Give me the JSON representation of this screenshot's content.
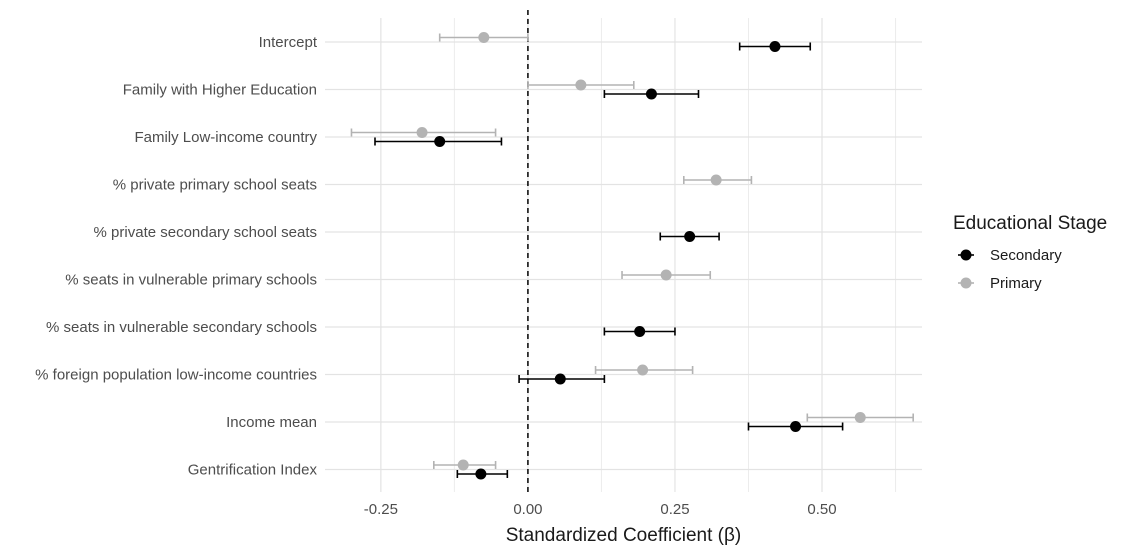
{
  "chart_data": {
    "type": "scatter",
    "subtype": "coefficient-plot-with-error-bars",
    "xlabel": "Standardized Coefficient (β)",
    "xlim": [
      -0.345,
      0.67
    ],
    "xticks": [
      -0.25,
      0.0,
      0.25,
      0.5
    ],
    "xtick_labels": [
      "-0.25",
      "0.00",
      "0.25",
      "0.50"
    ],
    "reference_line": {
      "x": 0,
      "style": "dashed",
      "color": "#000000"
    },
    "grid": true,
    "legend": {
      "title": "Educational Stage",
      "placement": "right"
    },
    "categories": [
      "Intercept",
      "Family with Higher Education",
      "Family Low-income country",
      "% private primary school seats",
      "% private secondary school seats",
      "% seats in vulnerable primary schools",
      "% seats in vulnerable secondary schools",
      "% foreign population low-income countries",
      "Income mean",
      "Gentrification Index"
    ],
    "series": [
      {
        "name": "Secondary",
        "color": "#000000",
        "points": [
          {
            "category": "Intercept",
            "estimate": 0.42,
            "lower": 0.36,
            "upper": 0.48
          },
          {
            "category": "Family with Higher Education",
            "estimate": 0.21,
            "lower": 0.13,
            "upper": 0.29
          },
          {
            "category": "Family Low-income country",
            "estimate": -0.15,
            "lower": -0.26,
            "upper": -0.045
          },
          {
            "category": "% private secondary school seats",
            "estimate": 0.275,
            "lower": 0.225,
            "upper": 0.325
          },
          {
            "category": "% seats in vulnerable secondary schools",
            "estimate": 0.19,
            "lower": 0.13,
            "upper": 0.25
          },
          {
            "category": "% foreign population low-income countries",
            "estimate": 0.055,
            "lower": -0.015,
            "upper": 0.13
          },
          {
            "category": "Income mean",
            "estimate": 0.455,
            "lower": 0.375,
            "upper": 0.535
          },
          {
            "category": "Gentrification Index",
            "estimate": -0.08,
            "lower": -0.12,
            "upper": -0.035
          }
        ]
      },
      {
        "name": "Primary",
        "color": "#b3b3b3",
        "points": [
          {
            "category": "Intercept",
            "estimate": -0.075,
            "lower": -0.15,
            "upper": 0.0
          },
          {
            "category": "Family with Higher Education",
            "estimate": 0.09,
            "lower": 0.0,
            "upper": 0.18
          },
          {
            "category": "Family Low-income country",
            "estimate": -0.18,
            "lower": -0.3,
            "upper": -0.055
          },
          {
            "category": "% private primary school seats",
            "estimate": 0.32,
            "lower": 0.265,
            "upper": 0.38
          },
          {
            "category": "% seats in vulnerable primary schools",
            "estimate": 0.235,
            "lower": 0.16,
            "upper": 0.31
          },
          {
            "category": "% foreign population low-income countries",
            "estimate": 0.195,
            "lower": 0.115,
            "upper": 0.28
          },
          {
            "category": "Income mean",
            "estimate": 0.565,
            "lower": 0.475,
            "upper": 0.655
          },
          {
            "category": "Gentrification Index",
            "estimate": -0.11,
            "lower": -0.16,
            "upper": -0.055
          }
        ]
      }
    ]
  }
}
